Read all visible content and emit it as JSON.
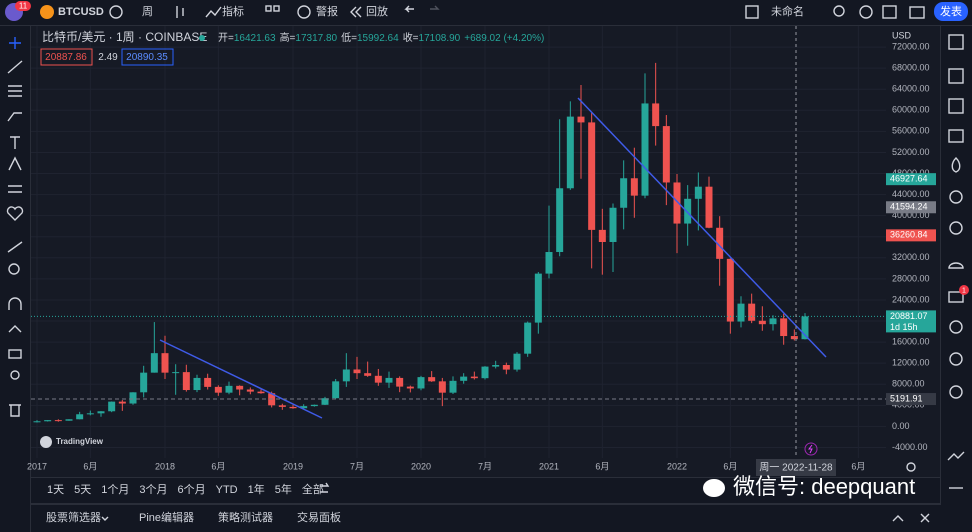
{
  "toolbar": {
    "badge": "11",
    "symbol": "BTCUSD",
    "interval": "周",
    "indicators": "指标",
    "alert": "警报",
    "replay": "回放",
    "layout_name": "未命名",
    "publish": "发表"
  },
  "header": {
    "title": "比特币/美元 · 1周 · COINBASE",
    "ohlc": [
      {
        "label": "开=",
        "value": "16421.63"
      },
      {
        "label": "高=",
        "value": "17317.80"
      },
      {
        "label": "低=",
        "value": "15992.64"
      },
      {
        "label": "收=",
        "value": "17108.90"
      }
    ],
    "change": "+689.02 (+4.20%)",
    "bid": "20887.86",
    "spread": "2.49",
    "ask": "20890.35"
  },
  "chart_data": {
    "type": "candlestick",
    "currency": "USD",
    "grid": true,
    "up_color": "#26a69a",
    "down_color": "#ef5350",
    "categories": [
      null,
      null,
      null,
      null,
      null,
      null,
      null,
      null,
      null,
      null,
      null,
      null,
      null,
      null,
      null,
      null,
      null,
      null,
      null,
      null,
      null,
      null,
      null,
      null,
      null,
      null,
      null,
      null,
      null,
      null,
      null,
      null,
      null,
      null,
      null,
      null,
      null,
      null,
      null,
      null,
      null,
      null,
      null,
      null,
      null,
      null,
      null,
      null,
      null,
      null,
      null,
      null,
      null,
      null,
      null,
      null,
      null,
      null,
      null,
      null,
      null,
      null,
      null,
      null,
      null,
      null,
      null,
      null,
      null,
      null,
      null,
      null,
      null
    ],
    "open": [
      963,
      970,
      1190,
      1080,
      1350,
      2300,
      2480,
      2870,
      4700,
      4340,
      6470,
      10200,
      13900,
      10200,
      10300,
      6900,
      9200,
      7500,
      6400,
      7700,
      7000,
      6600,
      6300,
      4000,
      3700,
      3450,
      3850,
      4100,
      5350,
      8550,
      10800,
      10100,
      9600,
      8300,
      9200,
      7550,
      7200,
      9350,
      8550,
      6400,
      8650,
      9450,
      9150,
      11350,
      11650,
      10780,
      13800,
      19700,
      29000,
      33100,
      45200,
      58800,
      57700,
      37300,
      35000,
      41500,
      47100,
      43800,
      61300,
      57000,
      46300,
      38500,
      43200,
      45500,
      37700,
      31800,
      19900,
      23300,
      20050,
      19400,
      20500,
      17150,
      16550
    ],
    "high": [
      1190,
      1200,
      1350,
      1350,
      2760,
      3000,
      2900,
      4740,
      5000,
      6470,
      11500,
      19800,
      17200,
      11800,
      11700,
      9800,
      10000,
      7800,
      8500,
      7800,
      7400,
      7000,
      6600,
      4300,
      4100,
      4200,
      4150,
      5600,
      9000,
      13900,
      13200,
      12300,
      10900,
      10400,
      9500,
      7750,
      9600,
      10500,
      9200,
      9500,
      10100,
      10400,
      11450,
      12450,
      12100,
      14100,
      19900,
      29300,
      41900,
      58300,
      61700,
      64800,
      59500,
      41300,
      42300,
      50500,
      52900,
      67000,
      69000,
      59100,
      47900,
      45800,
      48200,
      47400,
      39900,
      31900,
      24700,
      25200,
      22800,
      21100,
      21400,
      18400,
      21500
    ],
    "low": [
      750,
      920,
      890,
      1060,
      1350,
      2100,
      1830,
      2700,
      2950,
      4100,
      5500,
      10200,
      9000,
      6000,
      6600,
      6500,
      7000,
      5800,
      6100,
      5900,
      6100,
      6200,
      3600,
      3150,
      3350,
      3350,
      3750,
      4050,
      5300,
      7500,
      9000,
      9400,
      7700,
      7300,
      6500,
      6450,
      6850,
      8450,
      3850,
      6150,
      8100,
      8900,
      8900,
      11000,
      9900,
      10400,
      13200,
      17600,
      28100,
      32300,
      44900,
      47000,
      30000,
      28800,
      29300,
      37400,
      39600,
      43300,
      53300,
      42000,
      32900,
      34300,
      37200,
      37600,
      26700,
      17600,
      18800,
      19600,
      18150,
      18200,
      15500,
      16300,
      16500
    ],
    "close": [
      970,
      1190,
      1080,
      1350,
      2300,
      2480,
      2870,
      4700,
      4340,
      6470,
      10200,
      13900,
      10200,
      10300,
      6900,
      9200,
      7500,
      6400,
      7700,
      7000,
      6600,
      6300,
      4000,
      3700,
      3450,
      3850,
      4100,
      5350,
      8550,
      10800,
      10100,
      9600,
      8300,
      9200,
      7550,
      7200,
      9350,
      8550,
      6400,
      8650,
      9450,
      9150,
      11350,
      11650,
      10780,
      13800,
      19700,
      29000,
      33100,
      45200,
      58800,
      57700,
      37300,
      35000,
      41500,
      47100,
      43800,
      61300,
      57000,
      46300,
      38500,
      43200,
      45500,
      37700,
      31800,
      19900,
      23300,
      20050,
      19400,
      20500,
      17150,
      16550,
      20881
    ],
    "ylim": [
      -6000,
      76000
    ],
    "yticks": [
      {
        "value": 72000,
        "label": "72000.00"
      },
      {
        "value": 68000,
        "label": "68000.00"
      },
      {
        "value": 64000,
        "label": "64000.00"
      },
      {
        "value": 60000,
        "label": "60000.00"
      },
      {
        "value": 56000,
        "label": "56000.00"
      },
      {
        "value": 52000,
        "label": "52000.00"
      },
      {
        "value": 48000,
        "label": "48000.00"
      },
      {
        "value": 44000,
        "label": "44000.00"
      },
      {
        "value": 40000,
        "label": "40000.00"
      },
      {
        "value": 36000,
        "label": "36000.00"
      },
      {
        "value": 32000,
        "label": "32000.00"
      },
      {
        "value": 28000,
        "label": "28000.00"
      },
      {
        "value": 24000,
        "label": "24000.00"
      },
      {
        "value": 20000,
        "label": "20000.00"
      },
      {
        "value": 16000,
        "label": "16000.00"
      },
      {
        "value": 12000,
        "label": "12000.00"
      },
      {
        "value": 8000,
        "label": "8000.00"
      },
      {
        "value": 4000,
        "label": "4000.00"
      },
      {
        "value": 0,
        "label": "0.00"
      },
      {
        "value": -4000,
        "label": "-4000.00"
      }
    ],
    "xticks": [
      {
        "value": 0,
        "label": "2017"
      },
      {
        "value": 5,
        "label": "6月"
      },
      {
        "value": 12,
        "label": "2018"
      },
      {
        "value": 17,
        "label": "6月"
      },
      {
        "value": 24,
        "label": "2019"
      },
      {
        "value": 30,
        "label": "7月"
      },
      {
        "value": 36,
        "label": "2020"
      },
      {
        "value": 42,
        "label": "7月"
      },
      {
        "value": 48,
        "label": "2021"
      },
      {
        "value": 53,
        "label": "6月"
      },
      {
        "value": 60,
        "label": "2022"
      },
      {
        "value": 65,
        "label": "6月"
      },
      {
        "value": 77,
        "label": "6月"
      }
    ],
    "price_labels": [
      {
        "value": 46927.64,
        "color": "#26a69a"
      },
      {
        "value": 41594.24,
        "color": "#787b86"
      },
      {
        "value": 36260.84,
        "color": "#ef5350"
      },
      {
        "value": 20881.07,
        "color": "#26a69a"
      },
      {
        "value": 5191.91,
        "color": "#363a45"
      }
    ],
    "countdown": "1d 15h",
    "crosshair_date": "周一 2022-11-28",
    "logo": "TradingView"
  },
  "ranges": [
    "1天",
    "5天",
    "1个月",
    "3个月",
    "6个月",
    "YTD",
    "1年",
    "5年",
    "全部"
  ],
  "bottom_panel": [
    "股票筛选器",
    "Pine编辑器",
    "策略测试器",
    "交易面板"
  ],
  "right_badge": "1",
  "watermark": "微信号: deepquant"
}
